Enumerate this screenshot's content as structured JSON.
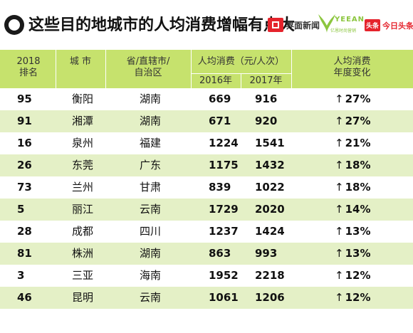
{
  "header": {
    "title": "这些目的地城市的人均消费增幅有点大",
    "logo_jiemian": "界面新闻",
    "logo_yeean_brand": "YEEAN",
    "logo_yeean_sub": "亿恩时尚营销",
    "logo_toutiao_badge": "头条",
    "logo_toutiao_text": "今日头条"
  },
  "colors": {
    "header_band": "#c6e26d",
    "alt_row": "#e4f0c6",
    "brand_red": "#e5232c",
    "brand_green": "#8cc63f"
  },
  "chart_data": {
    "type": "table",
    "columns": {
      "rank": [
        "2018",
        "排名"
      ],
      "city": "城 市",
      "province": [
        "省/直辖市/",
        "自治区"
      ],
      "spend": "人均消费（元/人次）",
      "year_2016": "2016年",
      "year_2017": "2017年",
      "change": [
        "人均消费",
        "年度变化"
      ]
    },
    "rows": [
      {
        "rank": "95",
        "city": "衡阳",
        "province": "湖南",
        "v2016": "669",
        "v2017": "916",
        "change": "27%"
      },
      {
        "rank": "91",
        "city": "湘潭",
        "province": "湖南",
        "v2016": "671",
        "v2017": "920",
        "change": "27%"
      },
      {
        "rank": "16",
        "city": "泉州",
        "province": "福建",
        "v2016": "1224",
        "v2017": "1541",
        "change": "21%"
      },
      {
        "rank": "26",
        "city": "东莞",
        "province": "广东",
        "v2016": "1175",
        "v2017": "1432",
        "change": "18%"
      },
      {
        "rank": "73",
        "city": "兰州",
        "province": "甘肃",
        "v2016": "839",
        "v2017": "1022",
        "change": "18%"
      },
      {
        "rank": "5",
        "city": "丽江",
        "province": "云南",
        "v2016": "1729",
        "v2017": "2020",
        "change": "14%"
      },
      {
        "rank": "28",
        "city": "成都",
        "province": "四川",
        "v2016": "1237",
        "v2017": "1424",
        "change": "13%"
      },
      {
        "rank": "81",
        "city": "株洲",
        "province": "湖南",
        "v2016": "863",
        "v2017": "993",
        "change": "13%"
      },
      {
        "rank": "3",
        "city": "三亚",
        "province": "海南",
        "v2016": "1952",
        "v2017": "2218",
        "change": "12%"
      },
      {
        "rank": "46",
        "city": "昆明",
        "province": "云南",
        "v2016": "1061",
        "v2017": "1206",
        "change": "12%"
      }
    ]
  }
}
